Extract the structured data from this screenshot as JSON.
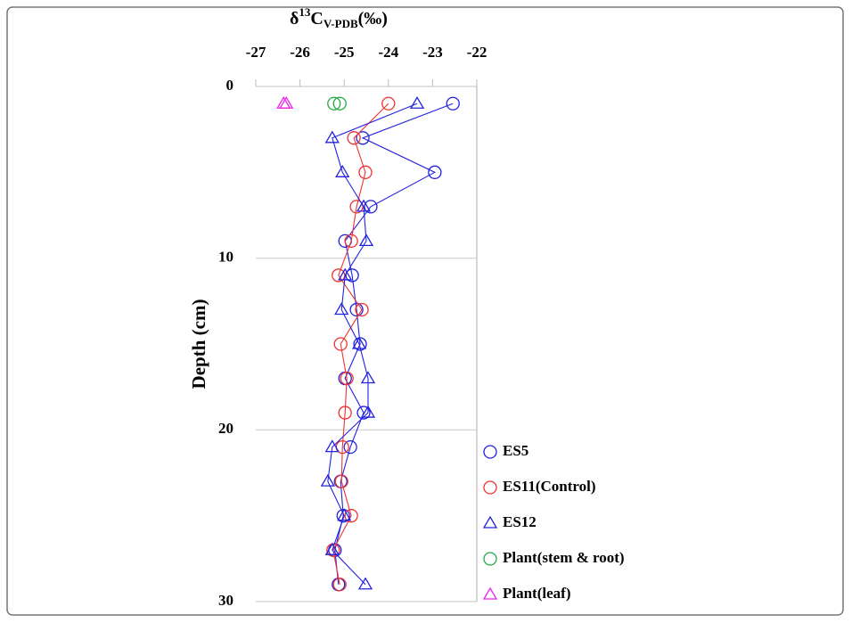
{
  "chart_data": {
    "type": "scatter",
    "xlabel_parts": [
      "δ",
      "13",
      "C",
      "V-PDB",
      "(‰)"
    ],
    "ylabel": "Depth (cm)",
    "xlim": [
      -27,
      -22
    ],
    "xticks": [
      -27,
      -26,
      -25,
      -24,
      -23,
      -22
    ],
    "ylim": [
      0,
      30
    ],
    "yticks": [
      0,
      10,
      20,
      30
    ],
    "y_inverted": true,
    "grid": true,
    "legend": "bottom-right",
    "series": [
      {
        "name": "ES5",
        "color": "#2222dd",
        "marker": "circle",
        "line": true,
        "x": [
          -22.54,
          -24.58,
          -22.95,
          -24.4,
          -24.98,
          -24.82,
          -24.72,
          -24.64,
          -24.98,
          -24.56,
          -24.86,
          -25.08,
          -25.02,
          -25.21,
          -25.13
        ],
        "y": [
          1,
          3,
          5,
          7,
          9,
          11,
          13,
          15,
          17,
          19,
          21,
          23,
          25,
          27,
          29
        ]
      },
      {
        "name": "ES11(Control)",
        "color": "#ee3333",
        "marker": "circle",
        "line": true,
        "x": [
          -24.0,
          -24.78,
          -24.52,
          -24.72,
          -24.84,
          -25.13,
          -24.6,
          -25.08,
          -24.94,
          -24.98,
          -25.04,
          -25.06,
          -24.84,
          -25.25,
          -25.1
        ],
        "y": [
          1,
          3,
          5,
          7,
          9,
          11,
          13,
          15,
          17,
          19,
          21,
          23,
          25,
          27,
          29
        ]
      },
      {
        "name": "ES12",
        "color": "#2222dd",
        "marker": "triangle",
        "line": true,
        "x": [
          -23.35,
          -25.27,
          -25.04,
          -24.56,
          -24.5,
          -24.98,
          -25.06,
          -24.66,
          -24.46,
          -24.46,
          -25.27,
          -25.37,
          -25.0,
          -25.27,
          -24.52
        ],
        "y": [
          1,
          3,
          5,
          7,
          9,
          11,
          13,
          15,
          17,
          19,
          21,
          23,
          25,
          27,
          29
        ]
      },
      {
        "name": "Plant(stem & root)",
        "color": "#22aa44",
        "marker": "circle",
        "line": false,
        "x": [
          -25.23,
          -25.1
        ],
        "y": [
          1,
          1
        ]
      },
      {
        "name": "Plant(leaf)",
        "color": "#ee22ee",
        "marker": "triangle",
        "line": false,
        "x": [
          -26.37,
          -26.31
        ],
        "y": [
          1,
          1
        ]
      }
    ]
  }
}
